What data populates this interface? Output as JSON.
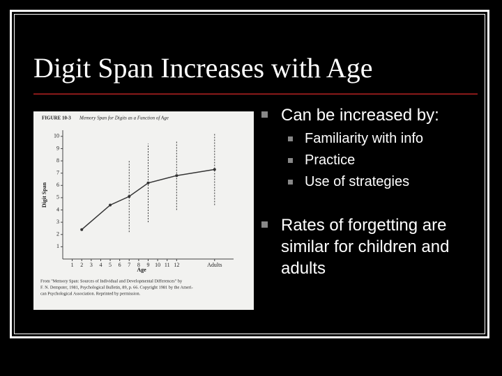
{
  "slide": {
    "title": "Digit Span Increases with Age",
    "bullets": [
      {
        "text": "Can be increased by:",
        "sub": [
          "Familiarity with info",
          "Practice",
          "Use of strategies"
        ]
      },
      {
        "text": "Rates of forgetting are similar for children and adults",
        "sub": []
      }
    ]
  },
  "chart_data": {
    "type": "line",
    "figure_label": "FIGURE 10-3",
    "title": "Memory Span for Digits as a Function of Age",
    "y_label": "Digit Span",
    "x_label": "Age",
    "x": [
      2,
      5,
      7,
      9,
      12,
      16
    ],
    "series": [
      {
        "name": "Digit Span",
        "color": "#333333",
        "values": [
          2.4,
          4.4,
          5.1,
          6.2,
          6.8,
          7.3
        ],
        "errors": [
          null,
          null,
          2.9,
          3.2,
          2.8,
          2.9
        ]
      }
    ],
    "xlim": [
      0,
      18
    ],
    "ylim": [
      0,
      10.5
    ],
    "xticks": [
      1,
      2,
      3,
      4,
      5,
      6,
      7,
      8,
      9,
      10,
      11,
      12,
      {
        "value": 16,
        "label": "Adults"
      }
    ],
    "yticks": [
      1,
      2,
      3,
      4,
      5,
      6,
      7,
      8,
      9,
      10
    ],
    "caption": [
      "From \"Memory Span: Sources of Individual and Developmental Differences\" by",
      "F. N. Dempster, 1981, Psychological Bulletin, 89, p. 66. Copyright 1981 by the Ameri-",
      "can Psychological Association. Reprinted by permission."
    ]
  }
}
